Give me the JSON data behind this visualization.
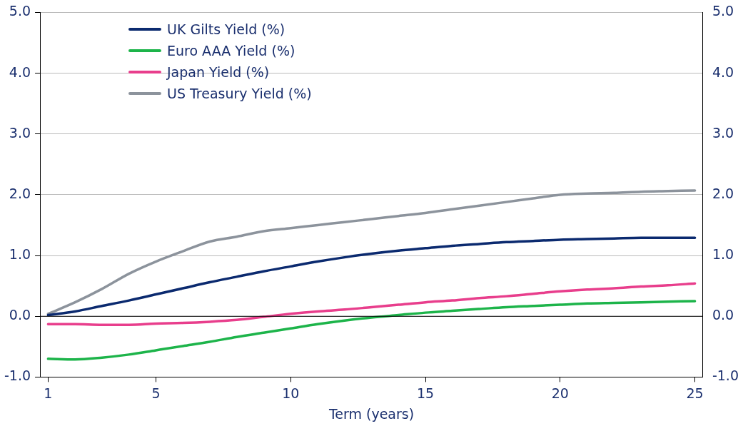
{
  "chart_data": {
    "type": "line",
    "xlabel": "Term (years)",
    "x": [
      1,
      2,
      3,
      4,
      5,
      6,
      7,
      8,
      9,
      10,
      11,
      12,
      13,
      14,
      15,
      16,
      17,
      18,
      19,
      20,
      21,
      22,
      23,
      24,
      25
    ],
    "series": [
      {
        "name": "UK Gilts Yield (%)",
        "color": "#0b2a6f",
        "values": [
          0.02,
          0.08,
          0.17,
          0.26,
          0.36,
          0.46,
          0.56,
          0.65,
          0.74,
          0.82,
          0.9,
          0.97,
          1.03,
          1.08,
          1.12,
          1.16,
          1.19,
          1.22,
          1.24,
          1.26,
          1.27,
          1.28,
          1.29,
          1.29,
          1.29
        ]
      },
      {
        "name": "Euro AAA Yield (%)",
        "color": "#1db44a",
        "values": [
          -0.7,
          -0.71,
          -0.68,
          -0.63,
          -0.56,
          -0.49,
          -0.42,
          -0.34,
          -0.27,
          -0.2,
          -0.13,
          -0.07,
          -0.02,
          0.02,
          0.06,
          0.09,
          0.12,
          0.15,
          0.17,
          0.19,
          0.21,
          0.22,
          0.23,
          0.24,
          0.25
        ]
      },
      {
        "name": "Japan Yield (%)",
        "color": "#e83e8c",
        "values": [
          -0.13,
          -0.13,
          -0.14,
          -0.14,
          -0.12,
          -0.11,
          -0.09,
          -0.06,
          -0.01,
          0.04,
          0.08,
          0.11,
          0.15,
          0.19,
          0.23,
          0.26,
          0.3,
          0.33,
          0.37,
          0.41,
          0.44,
          0.46,
          0.49,
          0.51,
          0.54
        ]
      },
      {
        "name": "US Treasury Yield (%)",
        "color": "#8c939c",
        "values": [
          0.04,
          0.23,
          0.45,
          0.7,
          0.9,
          1.07,
          1.23,
          1.31,
          1.4,
          1.45,
          1.5,
          1.55,
          1.6,
          1.65,
          1.7,
          1.76,
          1.82,
          1.88,
          1.94,
          2.0,
          2.02,
          2.03,
          2.05,
          2.06,
          2.07
        ]
      }
    ],
    "xlim": [
      0.7,
      25.3
    ],
    "xticks": [
      1,
      5,
      10,
      15,
      20,
      25
    ],
    "ylim": [
      -1,
      5
    ],
    "yticks": [
      {
        "value": -1,
        "label": "-1.0"
      },
      {
        "value": 0,
        "label": "0.0"
      },
      {
        "value": 1,
        "label": "1.0"
      },
      {
        "value": 2,
        "label": "2.0"
      },
      {
        "value": 3,
        "label": "3.0"
      },
      {
        "value": 4,
        "label": "4.0"
      },
      {
        "value": 5,
        "label": "5.0"
      }
    ],
    "y2lim": [
      -1,
      5
    ],
    "y2ticks": [
      {
        "value": -1,
        "label": "-1.0"
      },
      {
        "value": 0,
        "label": "0.0"
      },
      {
        "value": 1,
        "label": "1.0"
      },
      {
        "value": 2,
        "label": "2.0"
      },
      {
        "value": 3,
        "label": "3.0"
      },
      {
        "value": 4,
        "label": "4.0"
      },
      {
        "value": 5,
        "label": "5.0"
      }
    ],
    "ref_lines": [
      {
        "axis": "y",
        "value": 0,
        "color": "#000000"
      }
    ],
    "grid": "y",
    "legend": "top left",
    "marker": "none",
    "line_style": "solid"
  }
}
